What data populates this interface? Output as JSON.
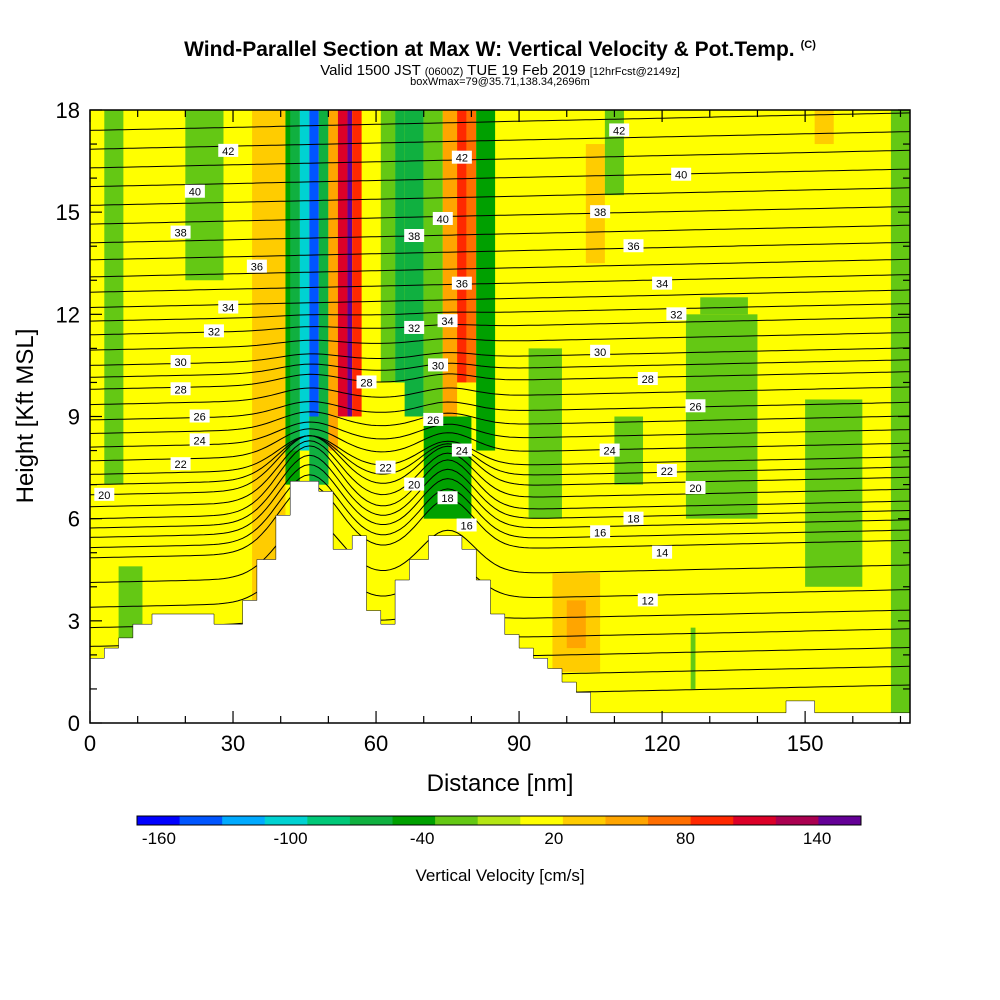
{
  "title": {
    "main": "Wind-Parallel Section at Max W: Vertical Velocity & Pot.Temp.",
    "copyright": "(C)",
    "valid_prefix": "Valid 1500 JST",
    "valid_z": "(0600Z)",
    "valid_date": "TUE 19 Feb 2019",
    "fcst": "[12hrFcst@2149z]",
    "boxwmax": "boxWmax=79@35.71,138.34,2696m"
  },
  "chart_data": {
    "type": "heatmap",
    "xlabel": "Distance [nm]",
    "ylabel": "Height [Kft MSL]",
    "xlim": [
      0,
      172
    ],
    "ylim": [
      0,
      18
    ],
    "x_ticks": [
      0,
      30,
      60,
      90,
      120,
      150
    ],
    "y_ticks": [
      0,
      3,
      6,
      9,
      12,
      15,
      18
    ],
    "colorbar": {
      "label": "Vertical Velocity [cm/s]",
      "tick_labels": [
        "-160",
        "-100",
        "-40",
        "20",
        "80",
        "140"
      ],
      "tick_values": [
        -160,
        -100,
        -40,
        20,
        80,
        140
      ],
      "range": [
        -170,
        160
      ],
      "colors": [
        "#0000ff",
        "#0055ff",
        "#00aaff",
        "#00d2d2",
        "#00c878",
        "#10b040",
        "#00a000",
        "#64c814",
        "#b4e614",
        "#ffff00",
        "#ffcc00",
        "#ffa500",
        "#ff6e00",
        "#ff2800",
        "#dc0028",
        "#aa0050",
        "#640096"
      ]
    },
    "cells": [
      {
        "x0": 0,
        "x1": 11,
        "y0": 0,
        "y1": 18,
        "w": 5
      },
      {
        "x0": 3,
        "x1": 7,
        "y0": 7,
        "y1": 18,
        "w": -30
      },
      {
        "x0": 6,
        "x1": 13,
        "y0": 2.4,
        "y1": 4.6,
        "w": -25
      },
      {
        "x0": 11,
        "x1": 34,
        "y0": 0,
        "y1": 18,
        "w": 12
      },
      {
        "x0": 20,
        "x1": 28,
        "y0": 13,
        "y1": 18,
        "w": -25
      },
      {
        "x0": 34,
        "x1": 41,
        "y0": 3.5,
        "y1": 18,
        "w": 30
      },
      {
        "x0": 36,
        "x1": 40,
        "y0": 6,
        "y1": 8,
        "w": 40
      },
      {
        "x0": 41,
        "x1": 44,
        "y0": 7,
        "y1": 18,
        "w": -40
      },
      {
        "x0": 42,
        "x1": 44,
        "y0": 8,
        "y1": 18,
        "w": -70
      },
      {
        "x0": 44,
        "x1": 46,
        "y0": 8,
        "y1": 18,
        "w": -110
      },
      {
        "x0": 46,
        "x1": 48,
        "y0": 9,
        "y1": 18,
        "w": -150
      },
      {
        "x0": 46,
        "x1": 50,
        "y0": 7,
        "y1": 9,
        "w": -60
      },
      {
        "x0": 48,
        "x1": 50,
        "y0": 7,
        "y1": 18,
        "w": -60
      },
      {
        "x0": 50,
        "x1": 52,
        "y0": 8,
        "y1": 18,
        "w": 50
      },
      {
        "x0": 52,
        "x1": 54,
        "y0": 9,
        "y1": 18,
        "w": 110
      },
      {
        "x0": 54,
        "x1": 55,
        "y0": 9,
        "y1": 18,
        "w": 150
      },
      {
        "x0": 55,
        "x1": 57,
        "y0": 9,
        "y1": 18,
        "w": 90
      },
      {
        "x0": 57,
        "x1": 61,
        "y0": 6,
        "y1": 18,
        "w": 20
      },
      {
        "x0": 61,
        "x1": 64,
        "y0": 10,
        "y1": 18,
        "w": -30
      },
      {
        "x0": 64,
        "x1": 66,
        "y0": 10,
        "y1": 18,
        "w": -60
      },
      {
        "x0": 66,
        "x1": 70,
        "y0": 9,
        "y1": 18,
        "w": -55
      },
      {
        "x0": 70,
        "x1": 74,
        "y0": 9,
        "y1": 18,
        "w": -30
      },
      {
        "x0": 74,
        "x1": 77,
        "y0": 9,
        "y1": 18,
        "w": 60
      },
      {
        "x0": 77,
        "x1": 79,
        "y0": 10,
        "y1": 18,
        "w": 100
      },
      {
        "x0": 79,
        "x1": 81,
        "y0": 10,
        "y1": 18,
        "w": 70
      },
      {
        "x0": 81,
        "x1": 85,
        "y0": 8,
        "y1": 18,
        "w": -40
      },
      {
        "x0": 70,
        "x1": 80,
        "y0": 6,
        "y1": 9,
        "w": -40
      },
      {
        "x0": 85,
        "x1": 92,
        "y0": 4,
        "y1": 18,
        "w": 5
      },
      {
        "x0": 92,
        "x1": 99,
        "y0": 6,
        "y1": 11,
        "w": -25
      },
      {
        "x0": 99,
        "x1": 104,
        "y0": 2.8,
        "y1": 18,
        "w": 10
      },
      {
        "x0": 104,
        "x1": 108,
        "y0": 13.5,
        "y1": 17,
        "w": 40
      },
      {
        "x0": 97,
        "x1": 107,
        "y0": 1.5,
        "y1": 4.4,
        "w": 35
      },
      {
        "x0": 100,
        "x1": 104,
        "y0": 2.2,
        "y1": 3.6,
        "w": 50
      },
      {
        "x0": 108,
        "x1": 112,
        "y0": 15.5,
        "y1": 18,
        "w": -20
      },
      {
        "x0": 110,
        "x1": 116,
        "y0": 7,
        "y1": 9,
        "w": -15
      },
      {
        "x0": 125,
        "x1": 140,
        "y0": 6,
        "y1": 12,
        "w": -22
      },
      {
        "x0": 128,
        "x1": 138,
        "y0": 12,
        "y1": 12.5,
        "w": -22
      },
      {
        "x0": 150,
        "x1": 162,
        "y0": 4,
        "y1": 9.5,
        "w": -22
      },
      {
        "x0": 126,
        "x1": 127,
        "y0": 1,
        "y1": 2.8,
        "w": -25
      },
      {
        "x0": 168,
        "x1": 172,
        "y0": 0,
        "y1": 18,
        "w": -20
      },
      {
        "x0": 152,
        "x1": 156,
        "y0": 17,
        "y1": 18,
        "w": 30
      }
    ],
    "terrain": [
      [
        0,
        1
      ],
      [
        0,
        1.9
      ],
      [
        3,
        1.9
      ],
      [
        3,
        2.2
      ],
      [
        6,
        2.2
      ],
      [
        6,
        2.5
      ],
      [
        9,
        2.5
      ],
      [
        9,
        2.9
      ],
      [
        13,
        2.9
      ],
      [
        13,
        3.2
      ],
      [
        26,
        3.2
      ],
      [
        26,
        2.9
      ],
      [
        32,
        2.9
      ],
      [
        32,
        3.6
      ],
      [
        35,
        3.6
      ],
      [
        35,
        4.8
      ],
      [
        39,
        4.8
      ],
      [
        39,
        6.1
      ],
      [
        42,
        6.1
      ],
      [
        42,
        7.1
      ],
      [
        48,
        7.1
      ],
      [
        48,
        6.8
      ],
      [
        51,
        6.8
      ],
      [
        51,
        5.1
      ],
      [
        55,
        5.1
      ],
      [
        55,
        5.5
      ],
      [
        58,
        5.5
      ],
      [
        58,
        3.3
      ],
      [
        61,
        3.3
      ],
      [
        61,
        2.9
      ],
      [
        64,
        2.9
      ],
      [
        64,
        4.2
      ],
      [
        67,
        4.2
      ],
      [
        67,
        4.8
      ],
      [
        71,
        4.8
      ],
      [
        71,
        5.5
      ],
      [
        78,
        5.5
      ],
      [
        78,
        5.1
      ],
      [
        81,
        5.1
      ],
      [
        81,
        4.2
      ],
      [
        84,
        4.2
      ],
      [
        84,
        3.2
      ],
      [
        87,
        3.2
      ],
      [
        87,
        2.6
      ],
      [
        90,
        2.6
      ],
      [
        90,
        2.2
      ],
      [
        93,
        2.2
      ],
      [
        93,
        1.9
      ],
      [
        96,
        1.9
      ],
      [
        96,
        1.6
      ],
      [
        99,
        1.6
      ],
      [
        99,
        1.2
      ],
      [
        102,
        1.2
      ],
      [
        102,
        0.9
      ],
      [
        105,
        0.9
      ],
      [
        105,
        0.3
      ],
      [
        146,
        0.3
      ],
      [
        146,
        0.65
      ],
      [
        152,
        0.65
      ],
      [
        152,
        0.3
      ],
      [
        172,
        0.3
      ],
      [
        172,
        0
      ],
      [
        0,
        0
      ]
    ],
    "isentropes": [
      {
        "label": "12",
        "y": 3.4,
        "hill": 1.5,
        "lx": 117,
        "ly": 3.6
      },
      {
        "label": "14",
        "y": 4.85,
        "hill": 2.0,
        "lx": 120,
        "ly": 5.0
      },
      {
        "label": "16",
        "y": 5.45,
        "hill": 2.0,
        "lx": 107,
        "ly": 5.6,
        "lx2": 79,
        "ly2": 5.8
      },
      {
        "label": "18",
        "y": 6.0,
        "hill": 2.0,
        "lx": 114,
        "ly": 6.0,
        "lx2": 75,
        "ly2": 6.6
      },
      {
        "label": "20",
        "y": 6.7,
        "hill": 1.6,
        "lx": 3,
        "ly": 6.7,
        "lx2": 68,
        "ly2": 7.0,
        "lx3": 127,
        "ly3": 6.9
      },
      {
        "label": "22",
        "y": 7.3,
        "hill": 1.0,
        "lx": 19,
        "ly": 7.6,
        "lx2": 62,
        "ly2": 7.5,
        "lx3": 121,
        "ly3": 7.4
      },
      {
        "label": "24",
        "y": 8.1,
        "hill": 0.6,
        "lx": 23,
        "ly": 8.3,
        "lx2": 78,
        "ly2": 8.0,
        "lx3": 109,
        "ly3": 8.0
      },
      {
        "label": "26",
        "y": 8.9,
        "hill": 0.4,
        "lx": 23,
        "ly": 9.0,
        "lx2": 72,
        "ly2": 8.9,
        "lx3": 127,
        "ly3": 9.3
      },
      {
        "label": "28",
        "y": 9.8,
        "hill": 0.3,
        "lx": 19,
        "ly": 9.8,
        "lx2": 58,
        "ly2": 10.0,
        "lx3": 117,
        "ly3": 10.1
      },
      {
        "label": "30",
        "y": 10.5,
        "hill": 0.2,
        "lx": 19,
        "ly": 10.6,
        "lx2": 73,
        "ly2": 10.5,
        "lx3": 107,
        "ly3": 10.9
      },
      {
        "label": "32",
        "y": 11.4,
        "hill": 0.1,
        "lx": 26,
        "ly": 11.5,
        "lx2": 68,
        "ly2": 11.6,
        "lx3": 123,
        "ly3": 12.0
      },
      {
        "label": "34",
        "y": 12.2,
        "hill": 0,
        "lx": 29,
        "ly": 12.2,
        "lx2": 75,
        "ly2": 11.8,
        "lx3": 120,
        "ly3": 12.9
      },
      {
        "label": "36",
        "y": 13.1,
        "hill": 0,
        "lx": 35,
        "ly": 13.4,
        "lx2": 78,
        "ly2": 12.9,
        "lx3": 114,
        "ly3": 14.0
      },
      {
        "label": "38",
        "y": 14.1,
        "hill": 0,
        "lx": 19,
        "ly": 14.4,
        "lx2": 68,
        "ly2": 14.3,
        "lx3": 107,
        "ly3": 15.0
      },
      {
        "label": "40",
        "y": 15.2,
        "hill": 0,
        "lx": 22,
        "ly": 15.6,
        "lx2": 74,
        "ly2": 14.8,
        "lx3": 124,
        "ly3": 16.1
      },
      {
        "label": "42",
        "y": 16.3,
        "hill": 0,
        "lx": 29,
        "ly": 16.8,
        "lx2": 78,
        "ly2": 16.6,
        "lx3": 111,
        "ly3": 17.4
      }
    ]
  }
}
